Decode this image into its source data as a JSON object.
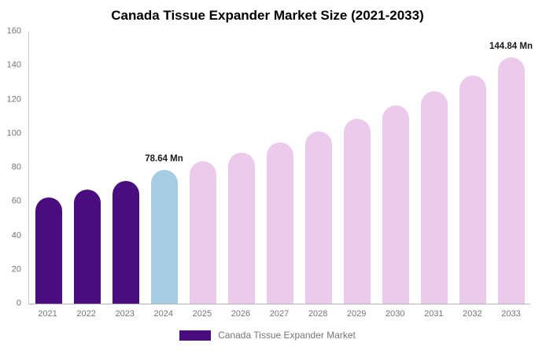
{
  "title": "Canada Tissue Expander Market Size (2021-2033)",
  "legend": {
    "label": "Canada Tissue Expander Market"
  },
  "colors": {
    "historical_bar": "#4a0d80",
    "current_bar": "#a7cde2",
    "forecast_bar": "#eccaec",
    "axis_text": "#757575",
    "title_text": "#000000",
    "axis_line": "#b3b3b3"
  },
  "chart_data": {
    "type": "bar",
    "title": "Canada Tissue Expander Market Size (2021-2033)",
    "unit": "Mn",
    "categories": [
      "2021",
      "2022",
      "2023",
      "2024",
      "2025",
      "2026",
      "2027",
      "2028",
      "2029",
      "2030",
      "2031",
      "2032",
      "2033"
    ],
    "values": [
      62.5,
      67,
      72,
      78.64,
      83.5,
      89,
      95,
      101.5,
      108.5,
      116.5,
      125,
      134,
      144.84
    ],
    "bar_labels": [
      "",
      "",
      "",
      "78.64 Mn",
      "",
      "",
      "",
      "",
      "",
      "",
      "",
      "",
      "144.84 Mn"
    ],
    "bar_color_keys": [
      "historical_bar",
      "historical_bar",
      "historical_bar",
      "current_bar",
      "forecast_bar",
      "forecast_bar",
      "forecast_bar",
      "forecast_bar",
      "forecast_bar",
      "forecast_bar",
      "forecast_bar",
      "forecast_bar",
      "forecast_bar"
    ],
    "xlabel": "",
    "ylabel": "",
    "ylim": [
      0,
      160
    ],
    "yticks": [
      0,
      20,
      40,
      60,
      80,
      100,
      120,
      140,
      160
    ],
    "grid": false,
    "legend_position": "bottom",
    "legend_entries": [
      "Canada Tissue Expander Market"
    ]
  }
}
